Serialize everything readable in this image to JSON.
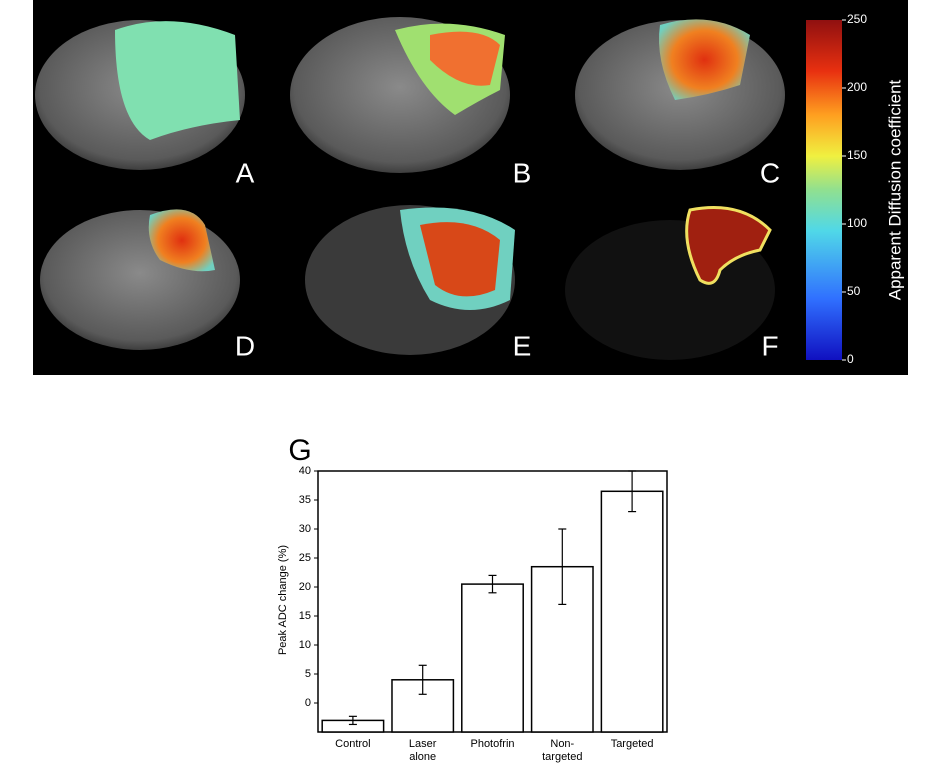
{
  "panels": {
    "labels": [
      "A",
      "B",
      "C",
      "D",
      "E",
      "F"
    ],
    "colorbar": {
      "label": "Apparent Diffusion coefficient",
      "lim": [
        0,
        250
      ],
      "ticks": [
        0,
        50,
        100,
        150,
        200,
        250
      ]
    }
  },
  "chart_data": {
    "type": "bar",
    "panel_label": "G",
    "y_label": "Peak ADC change (%)",
    "categories": [
      "Control",
      "Laser\nalone",
      "Photofrin",
      "Non-\ntargeted",
      "Targeted"
    ],
    "values": [
      -3,
      4,
      20.5,
      23.5,
      36.5
    ],
    "errors": [
      0.7,
      2.5,
      1.5,
      6.5,
      3.5
    ],
    "color": "#ffffff",
    "ylim": [
      -5,
      40
    ],
    "yticks": [
      0,
      5,
      10,
      15,
      20,
      25,
      30,
      35,
      40
    ]
  }
}
